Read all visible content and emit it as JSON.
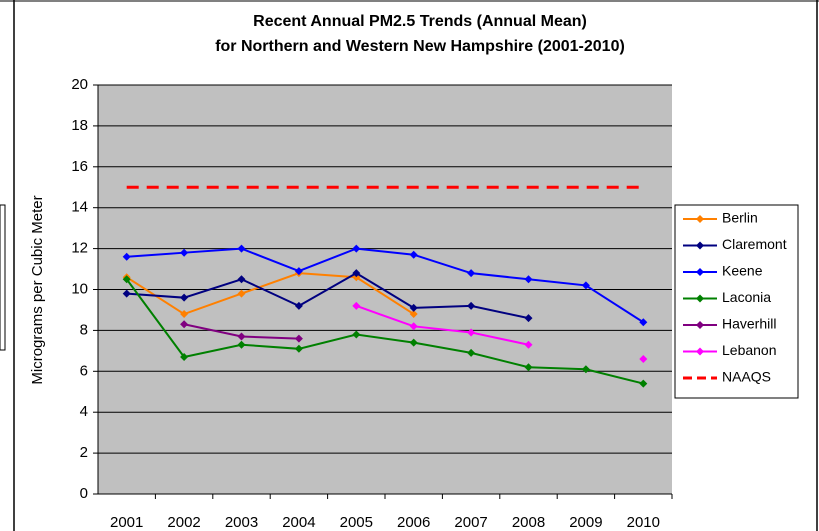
{
  "chart_data": {
    "type": "line",
    "title": [
      "Recent Annual PM2.5 Trends (Annual Mean)",
      "for Northern and Western New Hampshire (2001-2010)"
    ],
    "y_label": "Micrograms per Cubic Meter",
    "categories": [
      "2001",
      "2002",
      "2003",
      "2004",
      "2005",
      "2006",
      "2007",
      "2008",
      "2009",
      "2010"
    ],
    "ylim": [
      0,
      20
    ],
    "yticks": [
      0,
      2,
      4,
      6,
      8,
      10,
      12,
      14,
      16,
      18,
      20
    ],
    "grid": true,
    "legend": "right",
    "series": [
      {
        "name": "Berlin",
        "color": "#ff8000",
        "values": [
          10.6,
          8.8,
          9.8,
          10.8,
          10.6,
          8.8,
          null,
          null,
          null,
          null
        ]
      },
      {
        "name": "Claremont",
        "color": "#000080",
        "values": [
          9.8,
          9.6,
          10.5,
          9.2,
          10.8,
          9.1,
          9.2,
          8.6,
          null,
          null
        ]
      },
      {
        "name": "Keene",
        "color": "#0000ff",
        "values": [
          11.6,
          11.8,
          12.0,
          10.9,
          12.0,
          11.7,
          10.8,
          10.5,
          10.2,
          8.4
        ]
      },
      {
        "name": "Laconia",
        "color": "#008000",
        "values": [
          10.5,
          6.7,
          7.3,
          7.1,
          7.8,
          7.4,
          6.9,
          6.2,
          6.1,
          5.4
        ]
      },
      {
        "name": "Haverhill",
        "color": "#800080",
        "values": [
          null,
          8.3,
          7.7,
          7.6,
          null,
          null,
          null,
          null,
          null,
          null
        ]
      },
      {
        "name": "Lebanon",
        "color": "#ff00ff",
        "values": [
          null,
          null,
          null,
          null,
          9.2,
          8.2,
          7.9,
          7.3,
          null,
          6.6
        ]
      },
      {
        "name": "NAAQS",
        "color": "#ff0000",
        "dashed": true,
        "markers": false,
        "values": [
          15,
          15,
          15,
          15,
          15,
          15,
          15,
          15,
          15,
          15
        ]
      }
    ]
  }
}
